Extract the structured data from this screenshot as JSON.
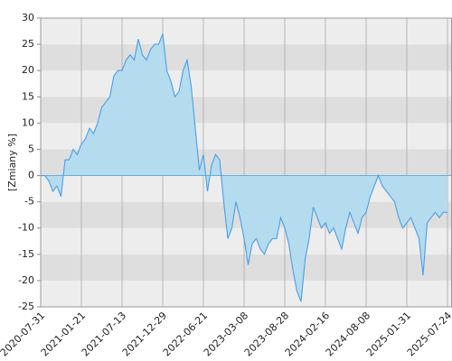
{
  "chart_data": {
    "type": "area",
    "y_label": "[Zmiany %]",
    "values": [
      0,
      0,
      -1,
      -3,
      -2,
      -4,
      3,
      3,
      5,
      4,
      6,
      7,
      9,
      8,
      10,
      13,
      14,
      15,
      19,
      20,
      20,
      22,
      23,
      22,
      26,
      23,
      22,
      24,
      25,
      25,
      27,
      20,
      18,
      15,
      16,
      20,
      22,
      17,
      9,
      1,
      4,
      -3,
      2,
      4,
      3,
      -5,
      -12,
      -10,
      -5,
      -8,
      -12,
      -17,
      -13,
      -12,
      -14,
      -15,
      -13,
      -12,
      -12,
      -8,
      -10,
      -13,
      -18,
      -22,
      -24,
      -16,
      -12,
      -6,
      -8,
      -10,
      -9,
      -11,
      -10,
      -12,
      -14,
      -10,
      -7,
      -9,
      -11,
      -8,
      -7,
      -4,
      -2,
      0,
      -2,
      -3,
      -4,
      -5,
      -8,
      -10,
      -9,
      -8,
      -10,
      -12,
      -19,
      -9,
      -8,
      -7,
      -8,
      -7,
      -7
    ],
    "line_color": "#4a9ee6",
    "fill_color": "#b4dcee",
    "xlim": [
      0,
      101
    ],
    "xticks": [
      {
        "value": 0,
        "label": "2020-07-31"
      },
      {
        "value": 10,
        "label": "2021-01-21"
      },
      {
        "value": 20,
        "label": "2021-07-13"
      },
      {
        "value": 30,
        "label": "2021-12-29"
      },
      {
        "value": 40,
        "label": "2022-06-21"
      },
      {
        "value": 50,
        "label": "2023-03-08"
      },
      {
        "value": 60,
        "label": "2023-08-28"
      },
      {
        "value": 70,
        "label": "2024-02-16"
      },
      {
        "value": 80,
        "label": "2024-08-08"
      },
      {
        "value": 90,
        "label": "2025-01-31"
      },
      {
        "value": 100,
        "label": "2025-07-24"
      }
    ],
    "ylim": [
      -25,
      30
    ],
    "yticks": [
      -25,
      -20,
      -15,
      -10,
      -5,
      0,
      5,
      10,
      15,
      20,
      25,
      30
    ],
    "grid": true
  }
}
